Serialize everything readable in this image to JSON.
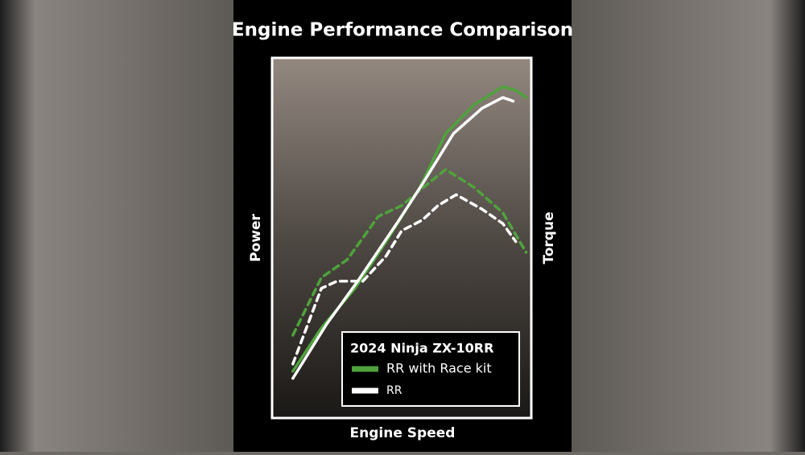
{
  "chart_data": {
    "type": "line",
    "title": "Engine Performance Comparison",
    "xlabel": "Engine Speed",
    "ylabel": "Power",
    "y2label": "Torque",
    "xlim": [
      0,
      100
    ],
    "ylim": [
      0,
      100
    ],
    "legend_title": "2024 Ninja ZX-10RR",
    "series": [
      {
        "name": "RR with Race kit",
        "color": "#4fa33c",
        "power": {
          "x": [
            8,
            19,
            32,
            44,
            57,
            67,
            78,
            89,
            94,
            98
          ],
          "values": [
            13,
            25,
            36,
            49,
            64,
            79,
            87,
            92,
            91,
            89
          ]
        },
        "torque": {
          "x": [
            8,
            19,
            29,
            41,
            50,
            60,
            67,
            78,
            89,
            98
          ],
          "values": [
            23,
            39,
            44,
            56,
            59,
            65,
            69,
            64,
            57,
            46
          ]
        }
      },
      {
        "name": "RR",
        "color": "#ffffff",
        "power": {
          "x": [
            8,
            21,
            33,
            49,
            58,
            70,
            81,
            89,
            93
          ],
          "values": [
            11,
            26,
            38,
            55,
            65,
            79,
            86,
            89,
            88
          ]
        },
        "torque": {
          "x": [
            8,
            19,
            25,
            35,
            44,
            50,
            58,
            64,
            71,
            81,
            89,
            94
          ],
          "values": [
            15,
            36,
            38,
            38,
            45,
            52,
            55,
            59,
            62,
            58,
            54,
            49
          ]
        }
      }
    ]
  }
}
